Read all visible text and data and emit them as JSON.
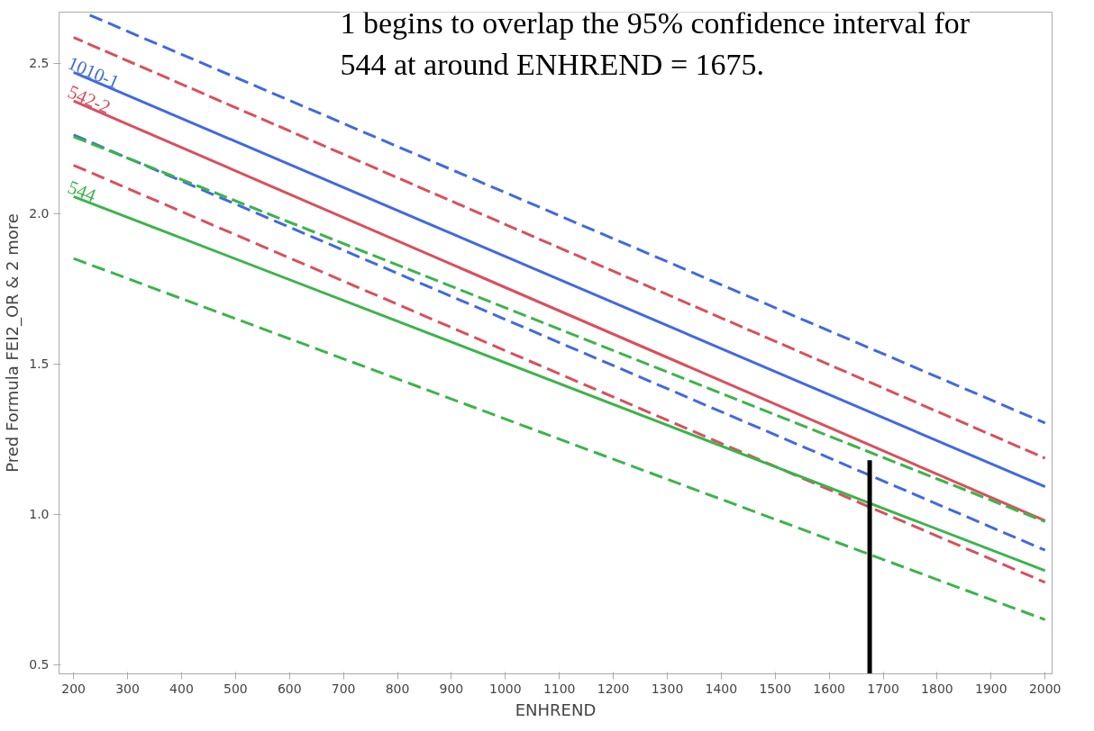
{
  "chart_data": {
    "type": "line",
    "xlabel": "ENHREND",
    "ylabel": "Pred Formula FEI2_OR & 2 more",
    "xlim": [
      173,
      2013
    ],
    "ylim": [
      0.47,
      2.67
    ],
    "xticks": [
      200,
      300,
      400,
      500,
      600,
      700,
      800,
      900,
      1000,
      1100,
      1200,
      1300,
      1400,
      1500,
      1600,
      1700,
      1800,
      1900,
      2000
    ],
    "yticks": [
      {
        "value": 0.5,
        "label": "0.5"
      },
      {
        "value": 1,
        "label": "1.0"
      },
      {
        "value": 1.5,
        "label": "1.5"
      },
      {
        "value": 2,
        "label": "2.0"
      },
      {
        "value": 2.5,
        "label": "2.5"
      }
    ],
    "grid": false,
    "marker": "none",
    "annotations": [
      "1 begins to overlap the 95% confidence interval for 544 at around ENHREND = 1675."
    ],
    "series": [
      {
        "color": "#4169e1",
        "line_style": "dashed",
        "x": [
          230,
          2000
        ],
        "values": [
          2.66,
          1.304
        ]
      },
      {
        "name": "1010-1",
        "color": "#4169e1",
        "line_style": "solid",
        "x": [
          200,
          2000
        ],
        "values": [
          2.47,
          1.092
        ]
      },
      {
        "color": "#4169e1",
        "line_style": "dashed",
        "x": [
          200,
          2000
        ],
        "values": [
          2.262,
          0.881
        ]
      },
      {
        "color": "#d9505e",
        "line_style": "dashed",
        "x": [
          200,
          2000
        ],
        "values": [
          2.586,
          1.187
        ]
      },
      {
        "name": "542-2",
        "color": "#d9505e",
        "line_style": "solid",
        "x": [
          200,
          2000
        ],
        "values": [
          2.375,
          0.979
        ]
      },
      {
        "color": "#d9505e",
        "line_style": "dashed",
        "x": [
          200,
          2000
        ],
        "values": [
          2.161,
          0.774
        ]
      },
      {
        "color": "#3cb44b",
        "line_style": "dashed",
        "x": [
          200,
          2000
        ],
        "values": [
          2.256,
          0.976
        ]
      },
      {
        "name": "544",
        "color": "#3cb44b",
        "line_style": "solid",
        "x": [
          200,
          2000
        ],
        "values": [
          2.057,
          0.813
        ]
      },
      {
        "color": "#3cb44b",
        "line_style": "dashed",
        "x": [
          200,
          2000
        ],
        "values": [
          1.851,
          0.65
        ]
      },
      {
        "color": "#000000",
        "line_style": "solid",
        "x": [
          1675,
          1675
        ],
        "values": [
          0.47,
          1.18
        ]
      }
    ]
  }
}
